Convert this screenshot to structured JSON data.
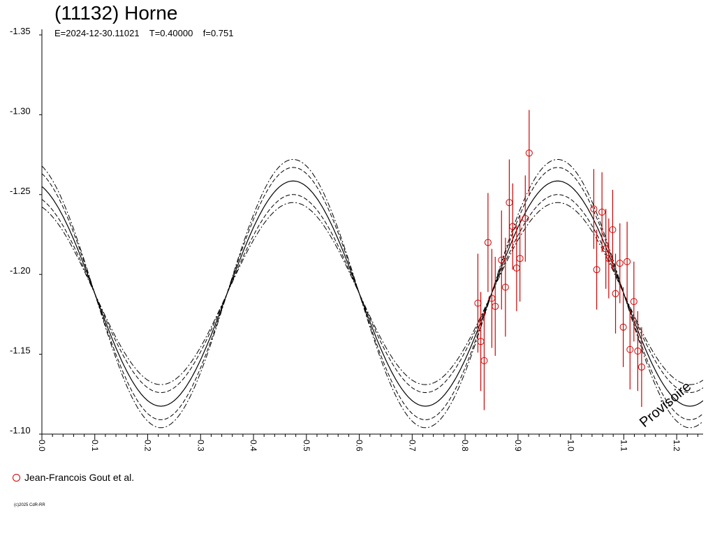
{
  "chart_data": {
    "type": "scatter",
    "title": "(11132) Horne",
    "subtitle": "E=2024-12-30.11021    T=0.40000    f=0.751",
    "watermark": "Provisoire",
    "copyright": "(c)2025 CdR-RR",
    "y_axis": {
      "range": [
        -1.35,
        -1.1
      ],
      "inverted": true,
      "ticks": [
        -1.35,
        -1.3,
        -1.25,
        -1.2,
        -1.15,
        -1.1
      ],
      "tick_labels": [
        "-1.35",
        "-1.30",
        "-1.25",
        "-1.20",
        "-1.15",
        "-1.10"
      ]
    },
    "x_axis": {
      "range": [
        0.0,
        1.25
      ],
      "ticks": [
        0.0,
        0.1,
        0.2,
        0.3,
        0.4,
        0.5,
        0.6,
        0.7,
        0.8,
        0.9,
        1.0,
        1.1,
        1.2
      ],
      "tick_labels": [
        "0.0",
        "0.1",
        "0.2",
        "0.3",
        "0.4",
        "0.5",
        "0.6",
        "0.7",
        "0.8",
        "0.9",
        "1.0",
        "1.1",
        "1.2"
      ],
      "label_rotation": "vertical"
    },
    "model": {
      "mean": -1.188,
      "amplitude": 0.0705,
      "peak_phase": 0.475,
      "envelopes": [
        {
          "style": "dashed",
          "amplitude_offset": 0.0085
        },
        {
          "style": "dash-dot",
          "amplitude_offset": 0.0135
        }
      ]
    },
    "series": [
      {
        "name": "Jean-Francois Gout et al.",
        "color": "#d00000",
        "marker": "open-circle",
        "points": [
          {
            "x": 0.8242,
            "y": -1.182,
            "err": 0.031
          },
          {
            "x": 0.8297,
            "y": -1.158,
            "err": 0.031
          },
          {
            "x": 0.8361,
            "y": -1.146,
            "err": 0.031
          },
          {
            "x": 0.8433,
            "y": -1.22,
            "err": 0.031
          },
          {
            "x": 0.8506,
            "y": -1.185,
            "err": 0.031
          },
          {
            "x": 0.857,
            "y": -1.18,
            "err": 0.031
          },
          {
            "x": 0.8689,
            "y": -1.209,
            "err": 0.031
          },
          {
            "x": 0.8763,
            "y": -1.192,
            "err": 0.031
          },
          {
            "x": 0.8836,
            "y": -1.245,
            "err": 0.027
          },
          {
            "x": 0.89,
            "y": -1.23,
            "err": 0.027
          },
          {
            "x": 0.8974,
            "y": -1.204,
            "err": 0.027
          },
          {
            "x": 0.9037,
            "y": -1.21,
            "err": 0.027
          },
          {
            "x": 0.9138,
            "y": -1.235,
            "err": 0.027
          },
          {
            "x": 0.9211,
            "y": -1.276,
            "err": 0.027
          },
          {
            "x": 1.0433,
            "y": -1.241,
            "err": 0.025
          },
          {
            "x": 1.0488,
            "y": -1.203,
            "err": 0.025
          },
          {
            "x": 1.0588,
            "y": -1.239,
            "err": 0.025
          },
          {
            "x": 1.0661,
            "y": -1.216,
            "err": 0.025
          },
          {
            "x": 1.0716,
            "y": -1.21,
            "err": 0.025
          },
          {
            "x": 1.079,
            "y": -1.228,
            "err": 0.025
          },
          {
            "x": 1.0844,
            "y": -1.188,
            "err": 0.025
          },
          {
            "x": 1.0926,
            "y": -1.207,
            "err": 0.025
          },
          {
            "x": 1.099,
            "y": -1.167,
            "err": 0.025
          },
          {
            "x": 1.1063,
            "y": -1.208,
            "err": 0.025
          },
          {
            "x": 1.1118,
            "y": -1.153,
            "err": 0.025
          },
          {
            "x": 1.1191,
            "y": -1.183,
            "err": 0.025
          },
          {
            "x": 1.1264,
            "y": -1.152,
            "err": 0.025
          },
          {
            "x": 1.1337,
            "y": -1.142,
            "err": 0.025
          }
        ]
      }
    ]
  }
}
